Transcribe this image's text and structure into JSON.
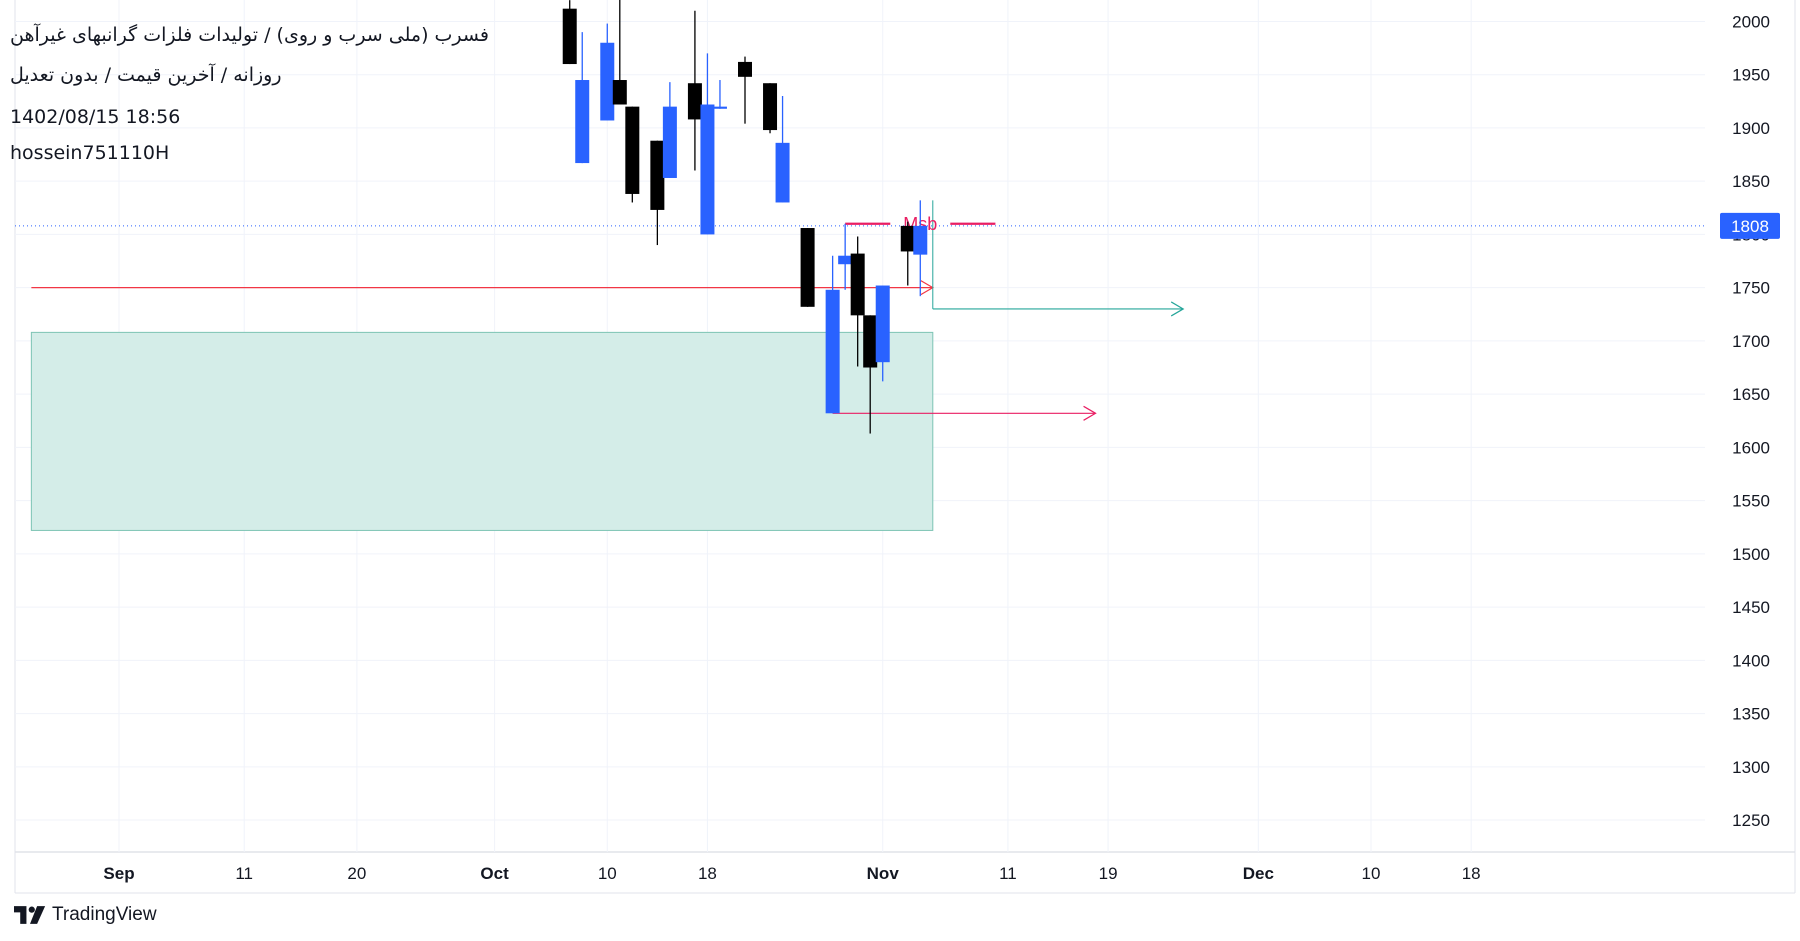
{
  "header": {
    "symbol_line": "فسرب (ملی سرب و روی) / تولیدات فلزات گرانبهای غیرآهن",
    "settings_line": "روزانه / آخرین قیمت / بدون تعدیل",
    "datetime": "1402/08/15 18:56",
    "author": "hossein751110H"
  },
  "footer": {
    "brand": "TradingView"
  },
  "colors": {
    "up": "#2962ff",
    "down": "#000000",
    "zone_fill": "#d4ede8",
    "zone_border": "#7dc4b4",
    "red_line": "#f23645",
    "msb": "#e91e63",
    "green_arrow": "#26a69a",
    "price_tag": "#2962ff"
  },
  "chart_data": {
    "type": "candlestick",
    "y_axis": {
      "ticks": [
        2000,
        1950,
        1900,
        1850,
        1800,
        1750,
        1700,
        1650,
        1600,
        1550,
        1500,
        1450,
        1400,
        1350,
        1300,
        1250
      ],
      "range": [
        1220,
        2007
      ]
    },
    "x_axis": {
      "ticks": [
        {
          "label": "Sep",
          "bold": true,
          "date": "2023-09-01"
        },
        {
          "label": "11",
          "bold": false,
          "date": "2023-09-11"
        },
        {
          "label": "20",
          "bold": false,
          "date": "2023-09-20"
        },
        {
          "label": "Oct",
          "bold": true,
          "date": "2023-10-01"
        },
        {
          "label": "10",
          "bold": false,
          "date": "2023-10-10"
        },
        {
          "label": "18",
          "bold": false,
          "date": "2023-10-18"
        },
        {
          "label": "Nov",
          "bold": true,
          "date": "2023-11-01"
        },
        {
          "label": "11",
          "bold": false,
          "date": "2023-11-11"
        },
        {
          "label": "19",
          "bold": false,
          "date": "2023-11-19"
        },
        {
          "label": "Dec",
          "bold": true,
          "date": "2023-12-01"
        },
        {
          "label": "10",
          "bold": false,
          "date": "2023-12-10"
        },
        {
          "label": "18",
          "bold": false,
          "date": "2023-12-18"
        }
      ]
    },
    "last_price": 1808,
    "candles": [
      {
        "date": "2023-10-07",
        "open": 2012,
        "high": 2020,
        "low": 1960,
        "close": 1960
      },
      {
        "date": "2023-10-08",
        "open": 1867,
        "high": 1990,
        "low": 1867,
        "close": 1945
      },
      {
        "date": "2023-10-10",
        "open": 1907,
        "high": 1998,
        "low": 1907,
        "close": 1980
      },
      {
        "date": "2023-10-11",
        "open": 1945,
        "high": 2025,
        "low": 1925,
        "close": 1922
      },
      {
        "date": "2023-10-12",
        "open": 1920,
        "high": 1920,
        "low": 1830,
        "close": 1838
      },
      {
        "date": "2023-10-14",
        "open": 1888,
        "high": 1888,
        "low": 1790,
        "close": 1823
      },
      {
        "date": "2023-10-15",
        "open": 1853,
        "high": 1943,
        "low": 1853,
        "close": 1920
      },
      {
        "date": "2023-10-17",
        "open": 1942,
        "high": 2010,
        "low": 1860,
        "close": 1908
      },
      {
        "date": "2023-10-18",
        "open": 1800,
        "high": 1970,
        "low": 1800,
        "close": 1922
      },
      {
        "date": "2023-10-19",
        "open": 1918,
        "high": 1945,
        "low": 1918,
        "close": 1920
      },
      {
        "date": "2023-10-21",
        "open": 1962,
        "high": 1967,
        "low": 1904,
        "close": 1948
      },
      {
        "date": "2023-10-23",
        "open": 1942,
        "high": 1942,
        "low": 1895,
        "close": 1898
      },
      {
        "date": "2023-10-24",
        "open": 1830,
        "high": 1930,
        "low": 1830,
        "close": 1886
      },
      {
        "date": "2023-10-26",
        "open": 1806,
        "high": 1806,
        "low": 1732,
        "close": 1732
      },
      {
        "date": "2023-10-28",
        "open": 1632,
        "high": 1780,
        "low": 1632,
        "close": 1748
      },
      {
        "date": "2023-10-29",
        "open": 1772,
        "high": 1810,
        "low": 1748,
        "close": 1780
      },
      {
        "date": "2023-10-30",
        "open": 1782,
        "high": 1798,
        "low": 1676,
        "close": 1724
      },
      {
        "date": "2023-10-31",
        "open": 1724,
        "high": 1724,
        "low": 1613,
        "close": 1675
      },
      {
        "date": "2023-11-01",
        "open": 1680,
        "high": 1752,
        "low": 1662,
        "close": 1752
      },
      {
        "date": "2023-11-03",
        "open": 1808,
        "high": 1812,
        "low": 1752,
        "close": 1784
      },
      {
        "date": "2023-11-04",
        "open": 1781,
        "high": 1832,
        "low": 1742,
        "close": 1808
      }
    ],
    "annotations": {
      "zone": {
        "from_date": "2023-08-25",
        "to_date": "2023-11-05",
        "top": 1708,
        "bottom": 1522
      },
      "red_level": {
        "price": 1750,
        "from_date": "2023-08-25",
        "to_date": "2023-11-05"
      },
      "msb": {
        "label": "Msb",
        "price": 1810,
        "from_date": "2023-10-29",
        "to_date": "2023-11-10"
      },
      "green_arrow": {
        "price": 1730,
        "from_date": "2023-11-05",
        "to_date": "2023-11-25"
      },
      "pink_arrow": {
        "price": 1632,
        "from_date": "2023-10-28",
        "to_date": "2023-11-18"
      }
    }
  }
}
